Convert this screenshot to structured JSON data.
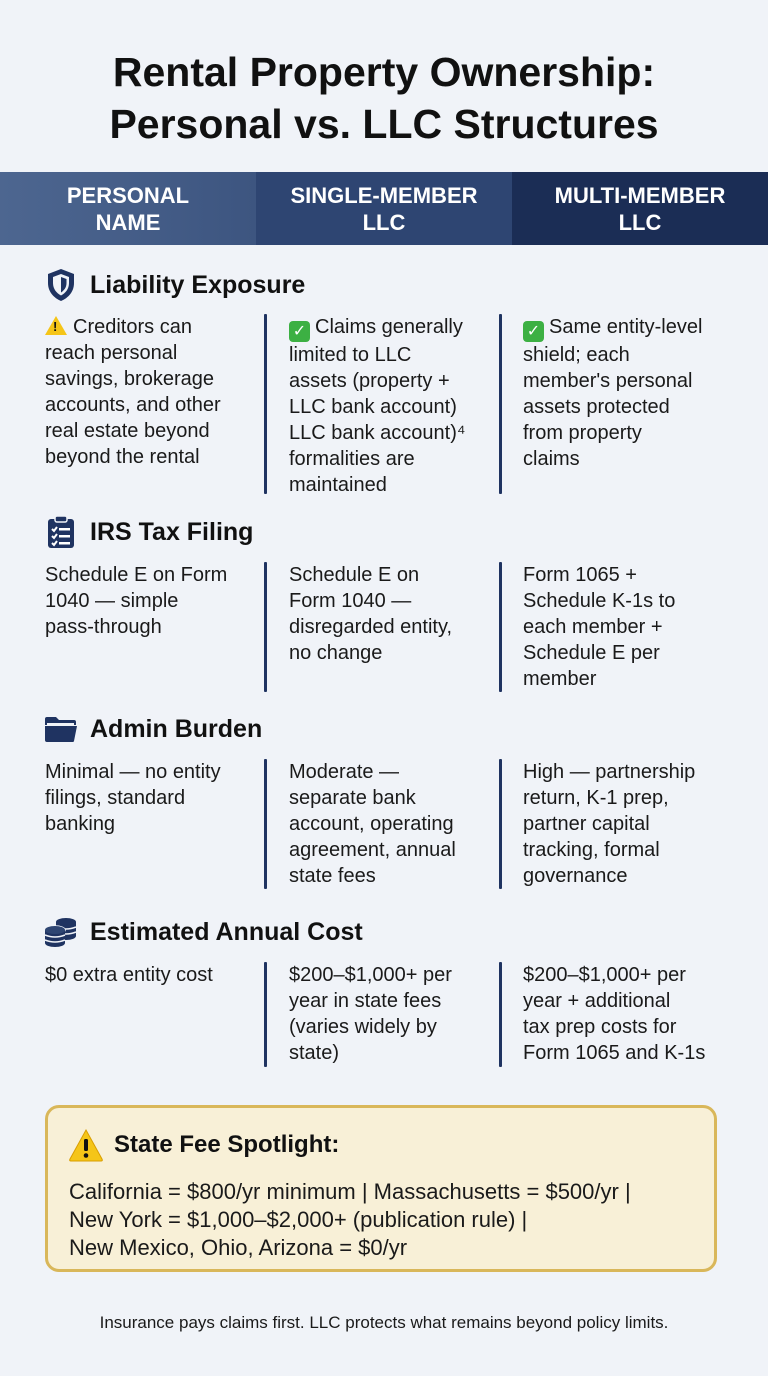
{
  "title": "Rental Property Ownership:\nPersonal vs. LLC Structures",
  "title_line1": "Rental Property Ownership:",
  "title_line2": "Personal vs. LLC Structures",
  "columns": [
    {
      "label": "PERSONAL\nNAME"
    },
    {
      "label": "SINGLE-MEMBER\nLLC"
    },
    {
      "label": "MULTI-MEMBER\nLLC"
    }
  ],
  "sections": {
    "liability": {
      "title": "Liability Exposure",
      "icon": "shield-icon",
      "cells": [
        "Creditors can\nreach personal\nsavings, brokerage\naccounts, and other\nreal estate beyond\nbeyond the rental",
        "Claims generally\nlimited to LLC\nassets (property +\nLLC bank account)\nLLC bank account)⁴\nformalities are\nmaintained",
        "Same entity-level\nshield; each\nmember's personal\nassets protected\nfrom property\nclaims"
      ],
      "cell_markers": [
        "warning-icon",
        "check-icon",
        "check-icon"
      ]
    },
    "tax": {
      "title": "IRS Tax Filing",
      "icon": "clipboard-icon",
      "cells": [
        "Schedule E on Form\n1040 — simple\npass-through",
        "Schedule E on\nForm 1040 —\ndisregarded entity,\nno change",
        "Form 1065 +\nSchedule K-1s to\neach member +\nSchedule E per\nmember"
      ]
    },
    "admin": {
      "title": "Admin Burden",
      "icon": "folder-icon",
      "cells": [
        "Minimal — no entity\nfilings, standard\nbanking",
        "Moderate —\nseparate bank\naccount, operating\nagreement, annual\nstate fees",
        "High — partnership\nreturn, K-1 prep,\npartner capital\ntracking, formal\ngovernance"
      ]
    },
    "cost": {
      "title": "Estimated Annual Cost",
      "icon": "coins-icon",
      "cells": [
        "$0 extra entity cost",
        "$200–$1,000+ per\nyear in state fees\n(varies widely by\nstate)",
        "$200–$1,000+ per\nyear + additional\ntax prep costs for\nForm 1065 and K-1s"
      ]
    }
  },
  "spotlight": {
    "title": "State Fee Spotlight:",
    "lines": [
      "California = $800/yr minimum | Massachusetts = $500/yr |",
      "New York = $1,000–$2,000+ (publication rule) |",
      "New Mexico, Ohio, Arizona = $0/yr"
    ]
  },
  "footer": "Insurance pays claims first. LLC protects what remains beyond policy limits.",
  "colors": {
    "background": "#f0f3f8",
    "header_col1": "#4d6690",
    "header_col2": "#2e4572",
    "header_col3": "#1b2d55",
    "divider": "#1f3361",
    "spotlight_bg": "#f8f0d7",
    "spotlight_border": "#d9b75a"
  }
}
